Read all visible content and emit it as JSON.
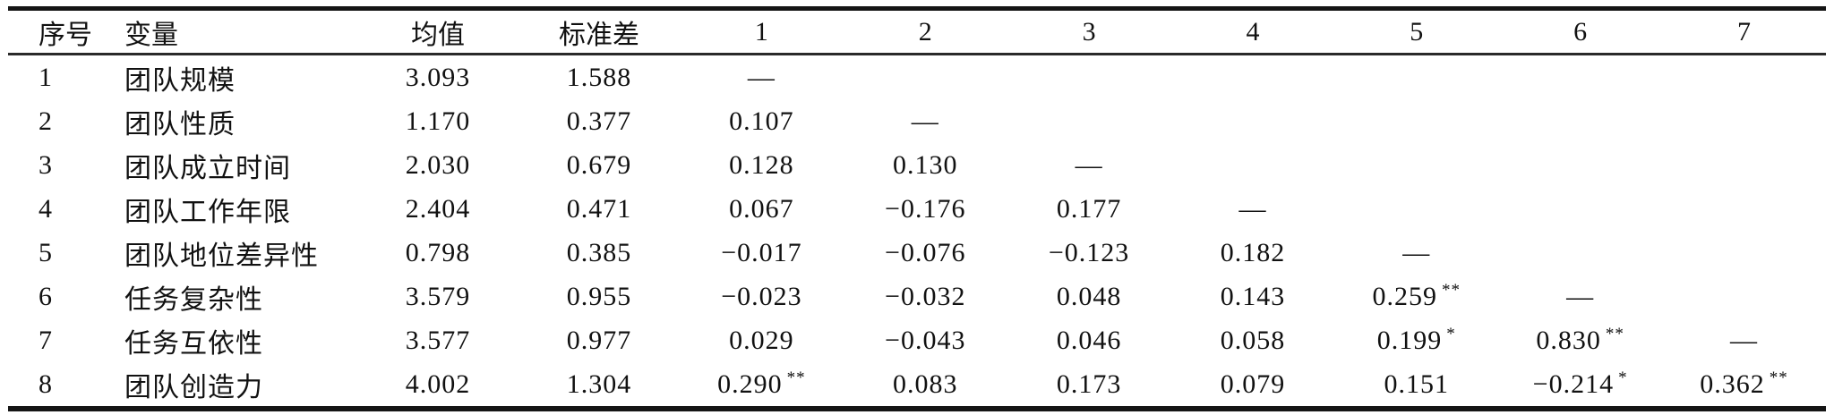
{
  "table": {
    "headers": [
      "序号",
      "变量",
      "均值",
      "标准差",
      "1",
      "2",
      "3",
      "4",
      "5",
      "6",
      "7"
    ],
    "rows": [
      {
        "no": "1",
        "variable": "团队规模",
        "mean": "3.093",
        "sd": "1.588",
        "cors": [
          {
            "v": "—"
          },
          null,
          null,
          null,
          null,
          null,
          null
        ]
      },
      {
        "no": "2",
        "variable": "团队性质",
        "mean": "1.170",
        "sd": "0.377",
        "cors": [
          {
            "v": "0.107"
          },
          {
            "v": "—"
          },
          null,
          null,
          null,
          null,
          null
        ]
      },
      {
        "no": "3",
        "variable": "团队成立时间",
        "mean": "2.030",
        "sd": "0.679",
        "cors": [
          {
            "v": "0.128"
          },
          {
            "v": "0.130"
          },
          {
            "v": "—"
          },
          null,
          null,
          null,
          null
        ]
      },
      {
        "no": "4",
        "variable": "团队工作年限",
        "mean": "2.404",
        "sd": "0.471",
        "cors": [
          {
            "v": "0.067"
          },
          {
            "v": "−0.176"
          },
          {
            "v": "0.177"
          },
          {
            "v": "—"
          },
          null,
          null,
          null
        ]
      },
      {
        "no": "5",
        "variable": "团队地位差异性",
        "mean": "0.798",
        "sd": "0.385",
        "cors": [
          {
            "v": "−0.017"
          },
          {
            "v": "−0.076"
          },
          {
            "v": "−0.123"
          },
          {
            "v": "0.182"
          },
          {
            "v": "—"
          },
          null,
          null
        ]
      },
      {
        "no": "6",
        "variable": "任务复杂性",
        "mean": "3.579",
        "sd": "0.955",
        "cors": [
          {
            "v": "−0.023"
          },
          {
            "v": "−0.032"
          },
          {
            "v": "0.048"
          },
          {
            "v": "0.143"
          },
          {
            "v": "0.259",
            "sig": "**"
          },
          {
            "v": "—"
          },
          null
        ]
      },
      {
        "no": "7",
        "variable": "任务互依性",
        "mean": "3.577",
        "sd": "0.977",
        "cors": [
          {
            "v": "0.029"
          },
          {
            "v": "−0.043"
          },
          {
            "v": "0.046"
          },
          {
            "v": "0.058"
          },
          {
            "v": "0.199",
            "sig": "*"
          },
          {
            "v": "0.830",
            "sig": "**"
          },
          {
            "v": "—"
          }
        ]
      },
      {
        "no": "8",
        "variable": "团队创造力",
        "mean": "4.002",
        "sd": "1.304",
        "cors": [
          {
            "v": "0.290",
            "sig": "**"
          },
          {
            "v": "0.083"
          },
          {
            "v": "0.173"
          },
          {
            "v": "0.079"
          },
          {
            "v": "0.151"
          },
          {
            "v": "−0.214",
            "sig": "*"
          },
          {
            "v": "0.362",
            "sig": "**"
          }
        ]
      }
    ],
    "column_semantic_names": [
      "serial-cell",
      "variable-cell",
      "mean-cell",
      "sd-cell",
      "correlation-1-cell",
      "correlation-2-cell",
      "correlation-3-cell",
      "correlation-4-cell",
      "correlation-5-cell",
      "correlation-6-cell",
      "correlation-7-cell"
    ],
    "colors": {
      "text": "#111111",
      "rule": "#151515",
      "background": "#ffffff"
    }
  }
}
